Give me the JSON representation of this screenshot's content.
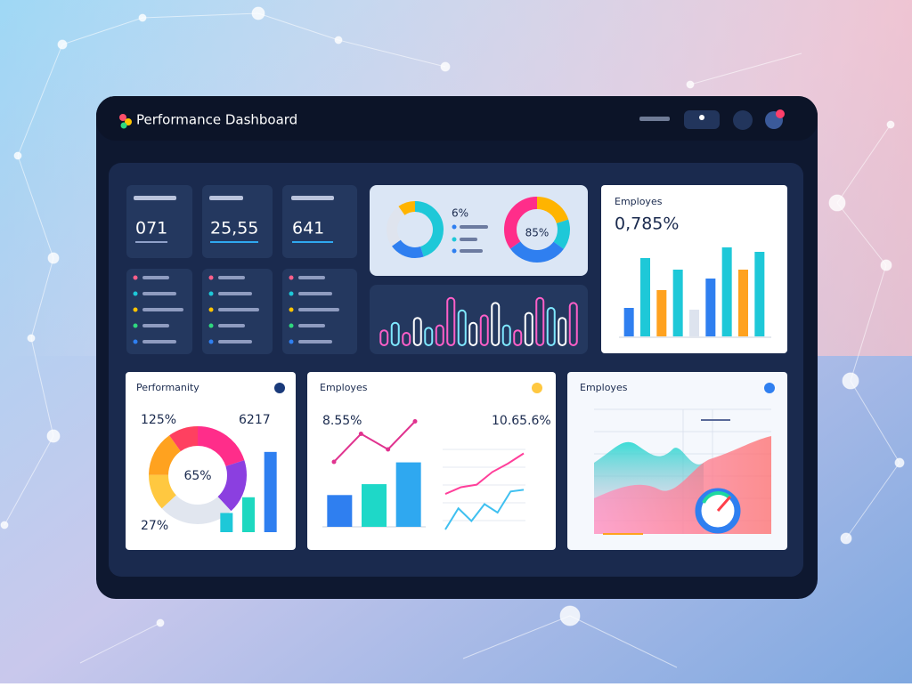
{
  "header": {
    "title": "Performance Dashboard"
  },
  "stats": [
    {
      "value": "071"
    },
    {
      "value": "25,55"
    },
    {
      "value": "641"
    }
  ],
  "donut_card": {
    "label": "6%",
    "center_label": "85%",
    "left_donut": {
      "values": [
        45,
        20,
        25,
        10
      ],
      "colors": [
        "#1ec8d8",
        "#2f7ff0",
        "#dfe4ee",
        "#ffb400"
      ]
    },
    "right_donut": {
      "values": [
        20,
        15,
        30,
        35
      ],
      "colors": [
        "#ffb400",
        "#1ec8d8",
        "#2f7ff0",
        "#ff2d8a"
      ]
    }
  },
  "neon_bars": {
    "type": "bar",
    "ylim": [
      0,
      100
    ],
    "values": [
      30,
      45,
      25,
      55,
      35,
      40,
      95,
      70,
      45,
      60,
      85,
      40,
      30,
      65,
      95,
      75,
      55,
      85
    ],
    "colors": [
      "#ff5fc8",
      "#7fe8ff",
      "#ff5fc8",
      "#ffffff",
      "#7fe8ff",
      "#ff5fc8",
      "#ff5fc8",
      "#7fe8ff",
      "#ffffff",
      "#ff5fc8",
      "#ffffff",
      "#7fe8ff",
      "#ff5fc8",
      "#ffffff",
      "#ff5fc8",
      "#7fe8ff",
      "#ffffff",
      "#ff5fc8"
    ]
  },
  "employes_card": {
    "type": "bar",
    "title": "Employes",
    "value": "0,785%",
    "ylim": [
      0,
      120
    ],
    "values": [
      32,
      88,
      52,
      75,
      30,
      65,
      100,
      75,
      95
    ],
    "colors": [
      "#2f7ff0",
      "#1ec8d8",
      "#ffa21f",
      "#1ec8d8",
      "#dde3ee",
      "#2f7ff0",
      "#1ec8d8",
      "#ffa21f",
      "#1ec8d8"
    ]
  },
  "performance_card": {
    "title": "Performanity",
    "label_a": "125%",
    "label_b": "6217",
    "label_c": "27%",
    "center_label": "65%",
    "donut": {
      "values": [
        20,
        18,
        25,
        12,
        15,
        10
      ],
      "colors": [
        "#ff2d8a",
        "#8b3fe0",
        "#e1e6ef",
        "#ffc840",
        "#ffa21f",
        "#ff4060"
      ]
    },
    "bars": {
      "type": "bar",
      "ylim": [
        0,
        100
      ],
      "values": [
        22,
        40,
        92
      ],
      "colors": [
        "#1ec8d8",
        "#1ed8c0",
        "#2f7ff0"
      ]
    }
  },
  "trend_card": {
    "title": "Employes",
    "label_a": "8.55%",
    "label_b": "10.65.6%",
    "line": {
      "type": "line",
      "ylim": [
        0,
        100
      ],
      "values": [
        30,
        75,
        50,
        95
      ],
      "color": "#e0338f"
    },
    "bars": {
      "type": "bar",
      "ylim": [
        0,
        100
      ],
      "values": [
        35,
        47,
        71
      ],
      "colors": [
        "#2f7ff0",
        "#1ed8c8",
        "#2fa8f0"
      ]
    },
    "series": [
      {
        "values": [
          42,
          50,
          53,
          68,
          78,
          90
        ],
        "color": "#ff3f9a"
      },
      {
        "values": [
          0,
          25,
          10,
          30,
          20,
          45,
          47
        ],
        "color": "#3fc0f0"
      }
    ]
  },
  "wave_card": {
    "title": "Employes"
  }
}
